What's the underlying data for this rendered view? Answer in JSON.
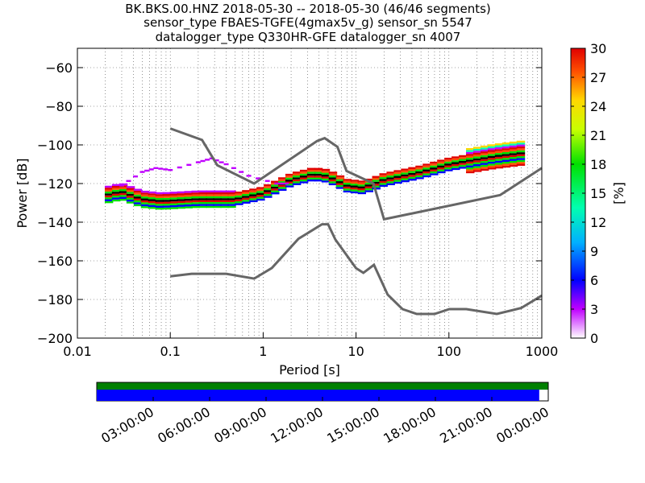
{
  "title_lines": [
    "BK.BKS.00.HNZ   2018-05-30 -- 2018-05-30  (46/46 segments)",
    "sensor_type FBAES-TGFE(4gmax5v_g) sensor_sn 5547",
    "datalogger_type Q330HR-GFE datalogger_sn 4007"
  ],
  "chart_data": {
    "type": "heatmap",
    "title": "BK.BKS.00.HNZ   2018-05-30 -- 2018-05-30  (46/46 segments)",
    "xlabel": "Period [s]",
    "ylabel": "Power [dB]",
    "xscale": "log",
    "xlim": [
      0.01,
      1000
    ],
    "ylim": [
      -200,
      -50
    ],
    "grid": true,
    "x_ticks": [
      "0.01",
      "0.1",
      "1",
      "10",
      "100",
      "1000"
    ],
    "y_ticks": [
      "−200",
      "−180",
      "−160",
      "−140",
      "−120",
      "−100",
      "−80",
      "−60"
    ],
    "y_tick_values": [
      -200,
      -180,
      -160,
      -140,
      -120,
      -100,
      -80,
      -60
    ],
    "colorbar": {
      "label": "[%]",
      "range": [
        0,
        30
      ],
      "ticks": [
        "0",
        "3",
        "6",
        "9",
        "12",
        "15",
        "18",
        "21",
        "24",
        "27",
        "30"
      ],
      "colormap": "pqlx"
    },
    "noise_model_color": "#666666",
    "new_high_noise_model": [
      [
        0.1,
        -91.5
      ],
      [
        0.22,
        -97.4
      ],
      [
        0.32,
        -110.5
      ],
      [
        0.8,
        -120
      ],
      [
        3.8,
        -98
      ],
      [
        4.6,
        -96.5
      ],
      [
        6.3,
        -101
      ],
      [
        7.9,
        -113.5
      ],
      [
        15.4,
        -120
      ],
      [
        20,
        -138.5
      ],
      [
        354.8,
        -126
      ],
      [
        1000,
        -112
      ]
    ],
    "new_low_noise_model": [
      [
        0.1,
        -168
      ],
      [
        0.17,
        -166.7
      ],
      [
        0.4,
        -166.7
      ],
      [
        0.8,
        -169.2
      ],
      [
        1.24,
        -163.7
      ],
      [
        2.4,
        -148.6
      ],
      [
        4.3,
        -141.1
      ],
      [
        5,
        -141.1
      ],
      [
        6,
        -149
      ],
      [
        10,
        -163.8
      ],
      [
        12,
        -166.2
      ],
      [
        15.6,
        -162.1
      ],
      [
        21.9,
        -177.5
      ],
      [
        31.6,
        -185
      ],
      [
        45,
        -187.5
      ],
      [
        70,
        -187.5
      ],
      [
        101,
        -185
      ],
      [
        154,
        -185
      ],
      [
        328,
        -187.5
      ],
      [
        600,
        -184.4
      ],
      [
        1000,
        -178
      ]
    ],
    "psd_mode": [
      [
        0.02,
        -126
      ],
      [
        0.03,
        -124
      ],
      [
        0.05,
        -128
      ],
      [
        0.08,
        -129
      ],
      [
        0.2,
        -128
      ],
      [
        0.5,
        -128
      ],
      [
        1,
        -125
      ],
      [
        2,
        -118
      ],
      [
        3.5,
        -115
      ],
      [
        5,
        -116
      ],
      [
        8,
        -121
      ],
      [
        12,
        -122
      ],
      [
        20,
        -118
      ],
      [
        50,
        -114
      ],
      [
        100,
        -110
      ],
      [
        300,
        -106
      ],
      [
        650,
        -104
      ]
    ],
    "psd_daytime_excursion": [
      [
        0.03,
        -121
      ],
      [
        0.05,
        -114
      ],
      [
        0.07,
        -112
      ],
      [
        0.1,
        -113
      ],
      [
        0.2,
        -109
      ],
      [
        0.28,
        -107
      ],
      [
        0.4,
        -110
      ],
      [
        0.7,
        -116
      ],
      [
        1.4,
        -120
      ],
      [
        2,
        -120
      ]
    ]
  },
  "data_availability": {
    "time_labels": [
      "03:00:00",
      "06:00:00",
      "09:00:00",
      "12:00:00",
      "15:00:00",
      "18:00:00",
      "21:00:00",
      "00:00:00"
    ],
    "segments_color": "#008000",
    "coverage_color": "#0000ff",
    "coverage_fraction": 0.98
  }
}
